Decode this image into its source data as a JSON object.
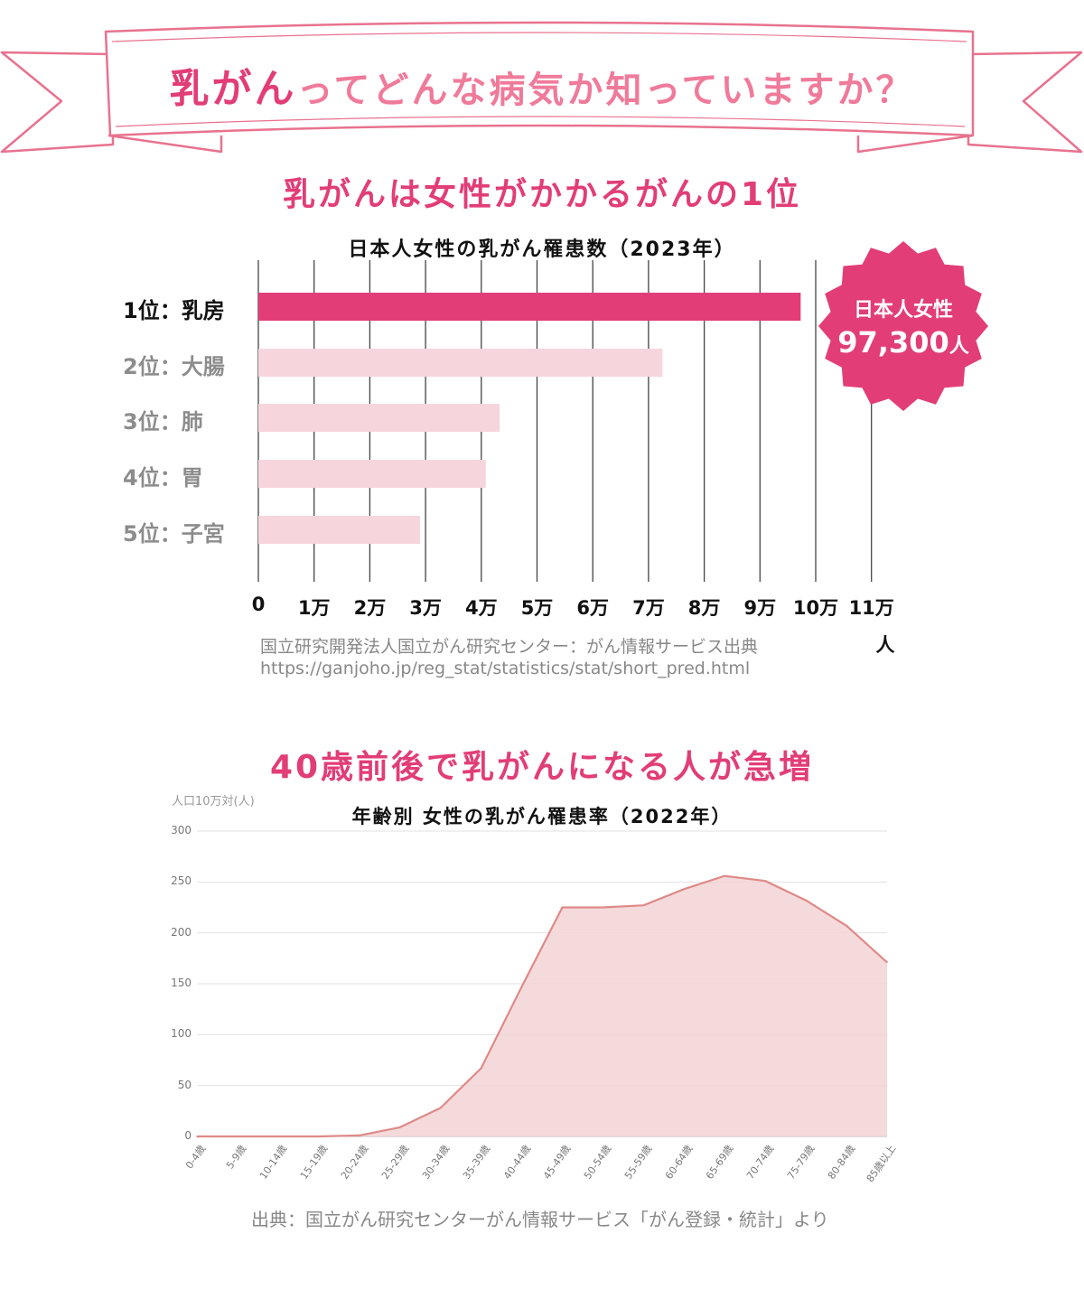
{
  "banner": {
    "title_highlight": "乳がん",
    "title_rest": "ってどんな病気か知っていますか？",
    "ribbon_color": "#e8728f"
  },
  "section1": {
    "heading": "乳がんは女性がかかるがんの1位",
    "chart_title": "日本人女性の乳がん罹患数（2023年）",
    "badge": {
      "line1": "日本人女性",
      "number": "97,300",
      "unit": "人",
      "color": "#e23d77"
    },
    "source_line1": "国立研究開発法人国立がん研究センター：がん情報サービス出典",
    "source_line2": "https://ganjoho.jp/reg_stat/statistics/stat/short_pred.html"
  },
  "section2": {
    "heading": "40歳前後で乳がんになる人が急増",
    "chart_title": "年齢別 女性の乳がん罹患率（2022年）",
    "y_unit": "人口10万対(人)",
    "source": "出典：国立がん研究センターがん情報サービス「がん登録・統計」より"
  },
  "chart_data": [
    {
      "type": "bar",
      "orientation": "horizontal",
      "title": "日本人女性の乳がん罹患数（2023年）",
      "categories": [
        "1位：乳房",
        "2位：大腸",
        "3位：肺",
        "4位：胃",
        "5位：子宮"
      ],
      "values": [
        97300,
        72500,
        43300,
        40800,
        29000
      ],
      "xlim": [
        0,
        110000
      ],
      "xticks": [
        "0",
        "1万",
        "2万",
        "3万",
        "4万",
        "5万",
        "6万",
        "7万",
        "8万",
        "9万",
        "10万",
        "11万"
      ],
      "xunit": "人",
      "colors": {
        "highlight": "#e23d77",
        "normal": "#f7d5dc"
      },
      "grid": true
    },
    {
      "type": "area",
      "title": "年齢別 女性の乳がん罹患率（2022年）",
      "ylabel": "人口10万対(人)",
      "categories": [
        "0-4歳",
        "5-9歳",
        "10-14歳",
        "15-19歳",
        "20-24歳",
        "25-29歳",
        "30-34歳",
        "35-39歳",
        "40-44歳",
        "45-49歳",
        "50-54歳",
        "55-59歳",
        "60-64歳",
        "65-69歳",
        "70-74歳",
        "75-79歳",
        "80-84歳",
        "85歳以上"
      ],
      "values": [
        0,
        0,
        0,
        0,
        1,
        9,
        28,
        67,
        147,
        225,
        225,
        227,
        243,
        256,
        251,
        232,
        207,
        171
      ],
      "ylim": [
        0,
        300
      ],
      "yticks": [
        0,
        50,
        100,
        150,
        200,
        250,
        300
      ],
      "colors": {
        "line": "#de8a88",
        "fill": "#f3d4d5"
      },
      "grid": true
    }
  ]
}
